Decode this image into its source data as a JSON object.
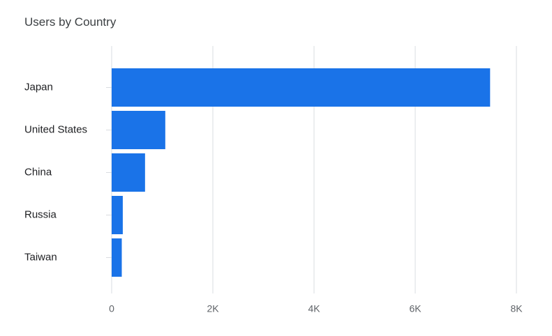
{
  "chart": {
    "title": "Users by Country",
    "bar_color": "#1a73e8",
    "grid_color": "#dadce0"
  },
  "chart_data": {
    "type": "bar",
    "orientation": "horizontal",
    "title": "Users by Country",
    "xlabel": "",
    "ylabel": "",
    "categories": [
      "Japan",
      "United States",
      "China",
      "Russia",
      "Taiwan"
    ],
    "values": [
      7480,
      1060,
      660,
      220,
      200
    ],
    "xlim": [
      0,
      8000
    ],
    "ticks": [
      0,
      2000,
      4000,
      6000,
      8000
    ],
    "tick_labels": [
      "0",
      "2K",
      "4K",
      "6K",
      "8K"
    ],
    "grid": true,
    "legend": "none"
  }
}
